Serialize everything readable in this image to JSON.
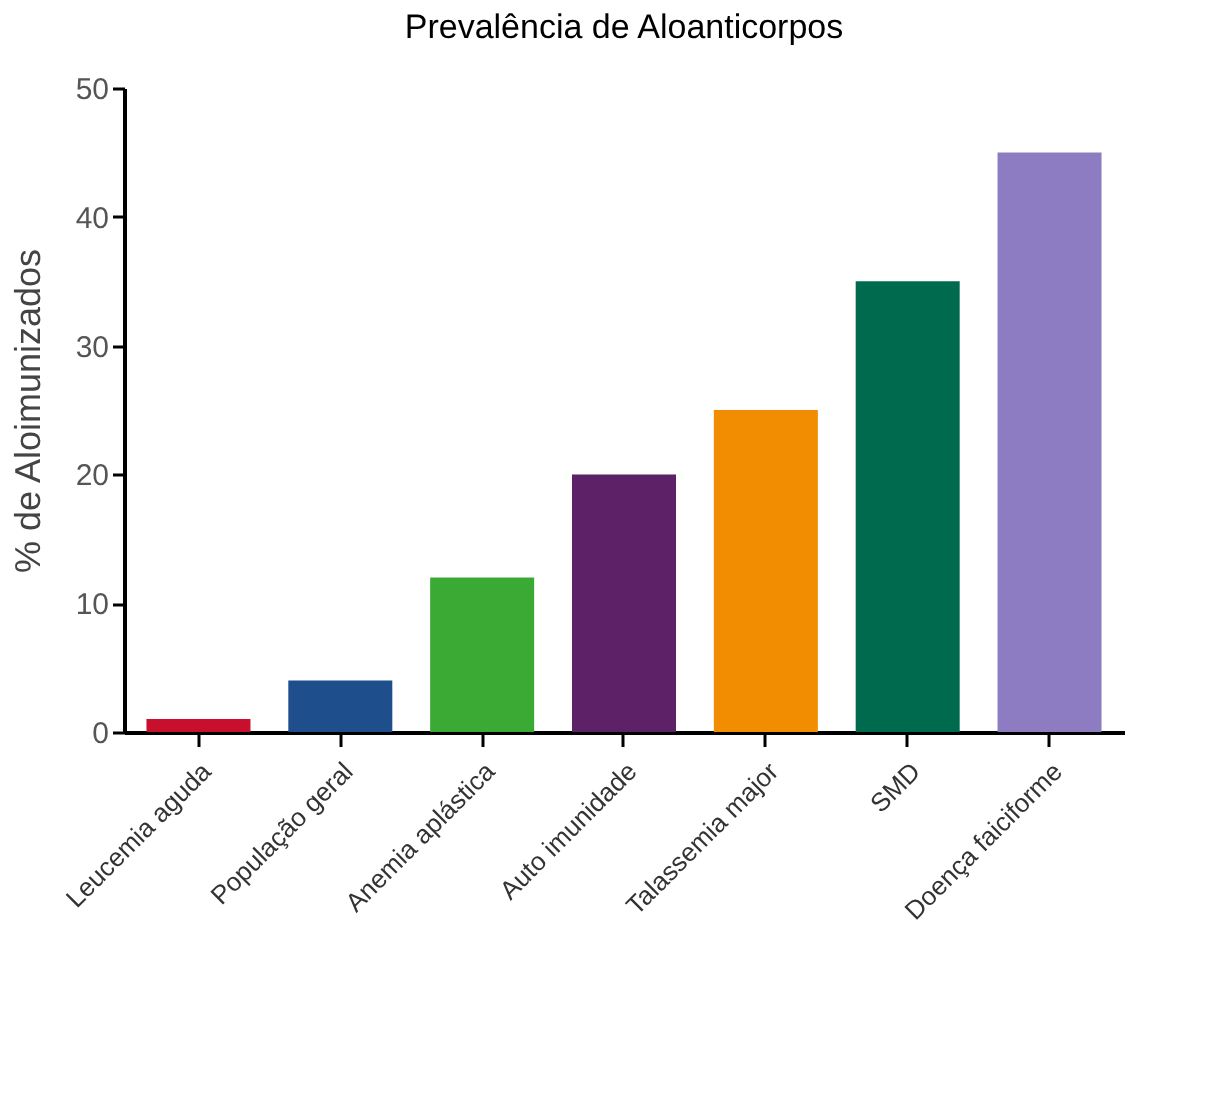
{
  "chart_data": {
    "type": "bar",
    "title": "Prevalência de Aloanticorpos",
    "ylabel": "% de Aloimunizados",
    "categories": [
      "Leucemia aguda",
      "População geral",
      "Anemia aplástica",
      "Auto imunidade",
      "Talassemia major",
      "SMD",
      "Doença faiciforme"
    ],
    "values": [
      1,
      4,
      12,
      20,
      25,
      35,
      45
    ],
    "colors": [
      "#c8102e",
      "#1f4e8c",
      "#3aaa35",
      "#5c2166",
      "#f28c00",
      "#006a4e",
      "#8e7cc3"
    ],
    "ylim": [
      0,
      50
    ],
    "yticks": [
      0,
      10,
      20,
      30,
      40,
      50
    ],
    "grid": false,
    "legend": false
  }
}
